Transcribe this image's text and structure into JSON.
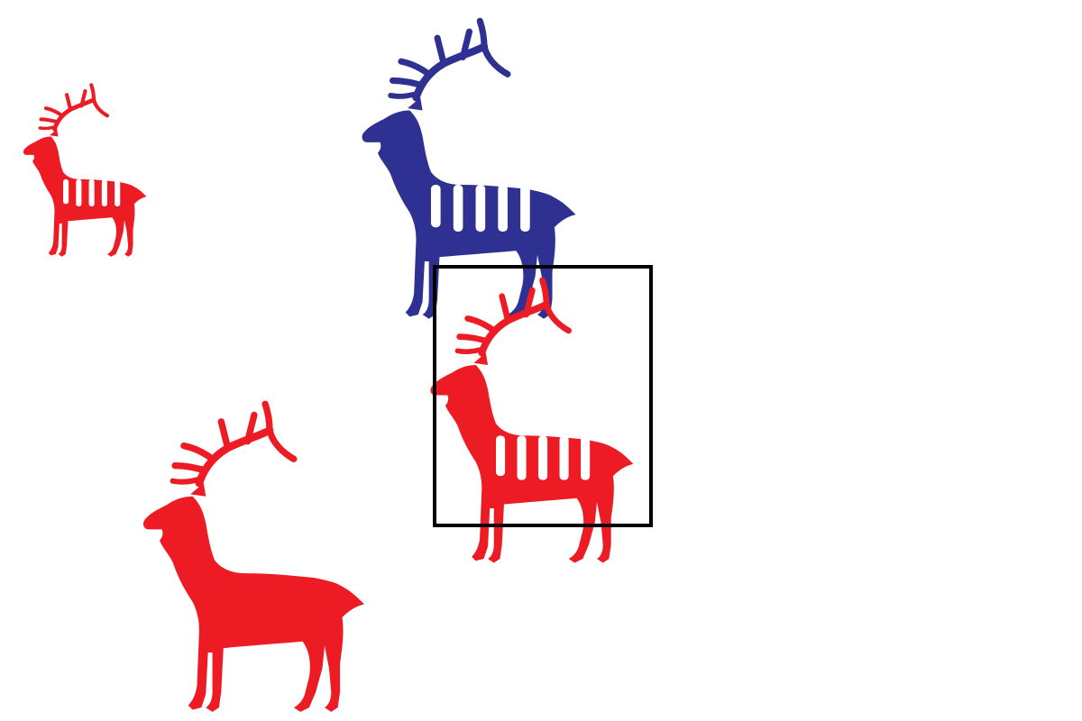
{
  "scene": {
    "background": "#ffffff",
    "selection_box": {
      "stroke": "#000000",
      "target": "elk-selected-red-striped"
    },
    "figures": [
      {
        "name": "elk-small-red-striped",
        "kind": "elk-icon",
        "color": "#ed1c24",
        "striped": true,
        "stripe_count": 5,
        "selected": false
      },
      {
        "name": "elk-blue-striped",
        "kind": "elk-icon",
        "color": "#2e3192",
        "striped": true,
        "stripe_count": 5,
        "selected": false
      },
      {
        "name": "elk-selected-red-striped",
        "kind": "elk-icon",
        "color": "#ed1c24",
        "striped": true,
        "stripe_count": 5,
        "selected": true
      },
      {
        "name": "elk-large-red-plain",
        "kind": "elk-icon",
        "color": "#ed1c24",
        "striped": false,
        "stripe_count": 0,
        "selected": false
      }
    ]
  }
}
